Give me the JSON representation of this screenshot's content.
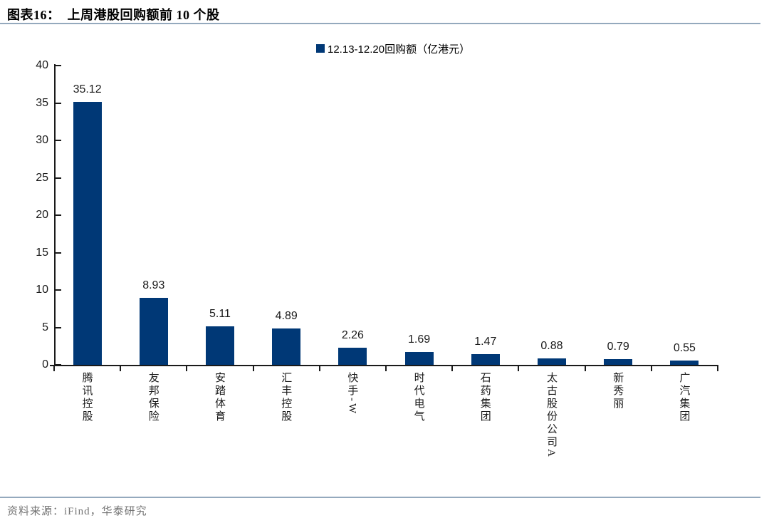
{
  "header": {
    "title": "图表16：  上周港股回购额前 10 个股"
  },
  "legend": {
    "label": "12.13-12.20回购额（亿港元）"
  },
  "colors": {
    "bar": "#003876",
    "rule": "#94a9bd",
    "axis": "#1a1a1a"
  },
  "chart_data": {
    "type": "bar",
    "title": "上周港股回购额前 10 个股",
    "series_name": "12.13-12.20回购额（亿港元）",
    "categories": [
      "腾讯控股",
      "友邦保险",
      "安踏体育",
      "汇丰控股",
      "快手-W",
      "时代电气",
      "石药集团",
      "太古股份公司A",
      "新秀丽",
      "广汽集团"
    ],
    "values": [
      35.12,
      8.93,
      5.11,
      4.89,
      2.26,
      1.69,
      1.47,
      0.88,
      0.79,
      0.55
    ],
    "xlabel": "",
    "ylabel": "",
    "ylim": [
      0,
      40
    ],
    "yticks": [
      0,
      5,
      10,
      15,
      20,
      25,
      30,
      35,
      40
    ],
    "grid": false,
    "legend_position": "top-center",
    "bar_color": "#003876",
    "value_labels_shown": true
  },
  "footer": {
    "source": "资料来源：iFind，华泰研究"
  }
}
